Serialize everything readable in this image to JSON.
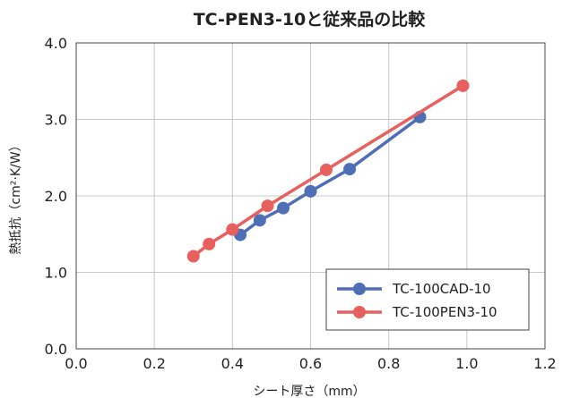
{
  "chart_data": {
    "type": "line",
    "title": "TC-PEN3-10と従来品の比較",
    "xlabel": "シート厚さ（mm）",
    "ylabel": "熱抵抗（cm²·K/W）",
    "xlim": [
      0.0,
      1.2
    ],
    "ylim": [
      0.0,
      4.0
    ],
    "x_ticks": [
      "0.0",
      "0.2",
      "0.4",
      "0.6",
      "0.8",
      "1.0",
      "1.2"
    ],
    "y_ticks": [
      "0.0",
      "1.0",
      "2.0",
      "3.0",
      "4.0"
    ],
    "grid": true,
    "legend_position": "bottom-right",
    "series": [
      {
        "name": "TC-100CAD-10",
        "color": "#4e6fb6",
        "points": [
          [
            0.42,
            1.49
          ],
          [
            0.47,
            1.68
          ],
          [
            0.53,
            1.84
          ],
          [
            0.6,
            2.06
          ],
          [
            0.7,
            2.35
          ],
          [
            0.88,
            3.03
          ]
        ]
      },
      {
        "name": "TC-100PEN3-10",
        "color": "#e8605d",
        "points": [
          [
            0.3,
            1.21
          ],
          [
            0.34,
            1.37
          ],
          [
            0.4,
            1.56
          ],
          [
            0.49,
            1.87
          ],
          [
            0.64,
            2.34
          ],
          [
            0.99,
            3.44
          ]
        ]
      }
    ]
  }
}
